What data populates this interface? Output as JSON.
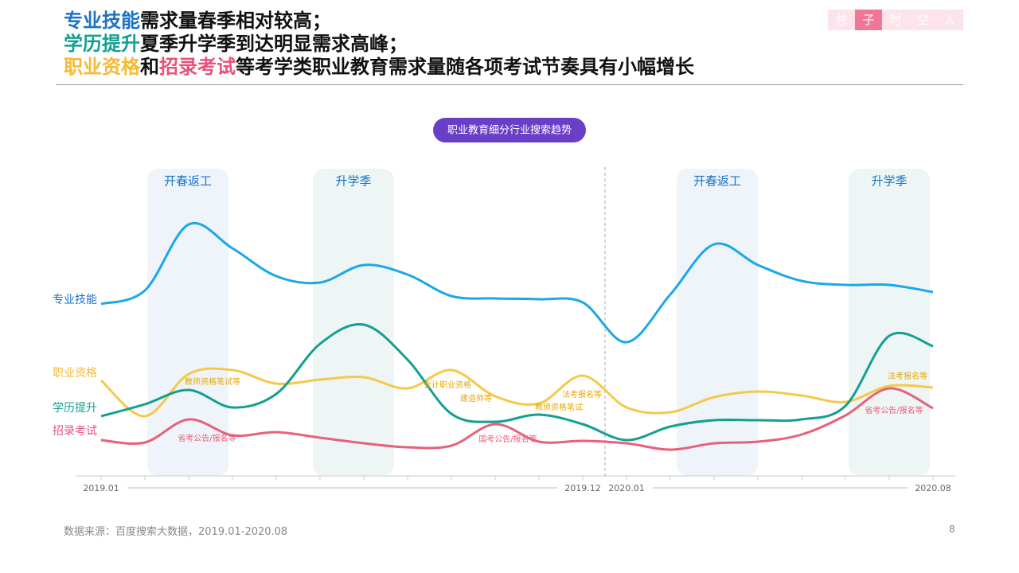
{
  "header": {
    "title": [
      [
        {
          "text": "专业技能",
          "color": "#1a73c6"
        },
        {
          "text": "需求量春季相对较高；",
          "color": "#111111"
        }
      ],
      [
        {
          "text": "学历提升",
          "color": "#13a08f"
        },
        {
          "text": "夏季升学季到达明显需求高峰；",
          "color": "#111111"
        }
      ],
      [
        {
          "text": "职业资格",
          "color": "#f5b935"
        },
        {
          "text": "和",
          "color": "#111111"
        },
        {
          "text": "招录考试",
          "color": "#e9507a"
        },
        {
          "text": "等考学类职业教育需求量随各项考试节奏具有小幅增长",
          "color": "#111111"
        }
      ]
    ]
  },
  "logo": [
    "总",
    "子",
    "时",
    "空",
    "人"
  ],
  "chart_data": {
    "type": "line",
    "title": "职业教育细分行业搜索趋势",
    "categories": [
      "2019.01",
      null,
      null,
      null,
      null,
      null,
      null,
      null,
      null,
      null,
      null,
      "2019.12",
      "2020.01",
      null,
      null,
      null,
      null,
      null,
      null,
      "2020.08"
    ],
    "ylim": [
      0,
      330
    ],
    "series": [
      {
        "name": "专业技能",
        "color": "#1aa8e8",
        "values": [
          218,
          235,
          318,
          288,
          253,
          245,
          267,
          255,
          228,
          225,
          224,
          220,
          170,
          230,
          293,
          267,
          247,
          242,
          242,
          233
        ]
      },
      {
        "name": "职业资格",
        "color": "#f5c84a",
        "values": [
          122,
          77,
          130,
          135,
          118,
          123,
          126,
          112,
          135,
          102,
          93,
          128,
          88,
          82,
          101,
          108,
          103,
          95,
          115,
          113
        ]
      },
      {
        "name": "学历提升",
        "color": "#13a08f",
        "values": [
          77,
          92,
          110,
          88,
          105,
          168,
          192,
          148,
          80,
          70,
          79,
          67,
          47,
          64,
          72,
          72,
          73,
          90,
          178,
          165
        ]
      },
      {
        "name": "招录考试",
        "color": "#e8607a",
        "values": [
          47,
          44,
          73,
          53,
          57,
          50,
          43,
          38,
          40,
          67,
          45,
          46,
          43,
          35,
          43,
          45,
          54,
          78,
          112,
          87
        ]
      }
    ],
    "bands": [
      "开春返工",
      "升学季",
      "开春返工",
      "升学季"
    ],
    "annotations": [
      "教师资格笔试等",
      "省考公告/报名等",
      "会计职业资格",
      "建造师等",
      "国考公告/报名等",
      "教师资格笔试",
      "法考报名等",
      "法考报名等",
      "省考公告/报名等"
    ]
  },
  "footer": {
    "source": "数据来源：百度搜索大数据，2019.01-2020.08",
    "page": "8"
  }
}
